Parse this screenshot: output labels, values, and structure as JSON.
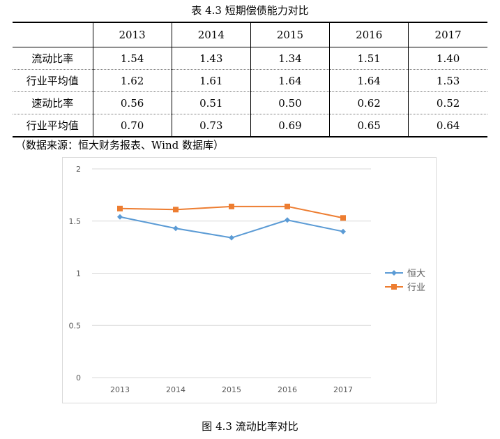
{
  "table": {
    "title": "表 4.3 短期偿债能力对比",
    "header": [
      "",
      "2013",
      "2014",
      "2015",
      "2016",
      "2017"
    ],
    "rows": [
      {
        "label": "流动比率",
        "values": [
          "1.54",
          "1.43",
          "1.34",
          "1.51",
          "1.40"
        ]
      },
      {
        "label": "行业平均值",
        "values": [
          "1.62",
          "1.61",
          "1.64",
          "1.64",
          "1.53"
        ]
      },
      {
        "label": "速动比率",
        "values": [
          "0.56",
          "0.51",
          "0.50",
          "0.62",
          "0.52"
        ]
      },
      {
        "label": "行业平均值",
        "values": [
          "0.70",
          "0.73",
          "0.69",
          "0.65",
          "0.64"
        ]
      }
    ],
    "source": "（数据来源：恒大财务报表、Wind 数据库）"
  },
  "chart_data": {
    "type": "line",
    "title": "",
    "xlabel": "",
    "ylabel": "",
    "categories": [
      "2013",
      "2014",
      "2015",
      "2016",
      "2017"
    ],
    "series": [
      {
        "name": "恒大",
        "values": [
          1.54,
          1.43,
          1.34,
          1.51,
          1.4
        ],
        "color": "#5b9bd5",
        "marker": "diamond"
      },
      {
        "name": "行业",
        "values": [
          1.62,
          1.61,
          1.64,
          1.64,
          1.53
        ],
        "color": "#ed7d31",
        "marker": "square"
      }
    ],
    "ylim": [
      0,
      2
    ],
    "yticks": [
      "0",
      "0.5",
      "1",
      "1.5",
      "2"
    ],
    "grid": true,
    "legend": "right"
  },
  "figure_caption": "图 4.3 流动比率对比"
}
